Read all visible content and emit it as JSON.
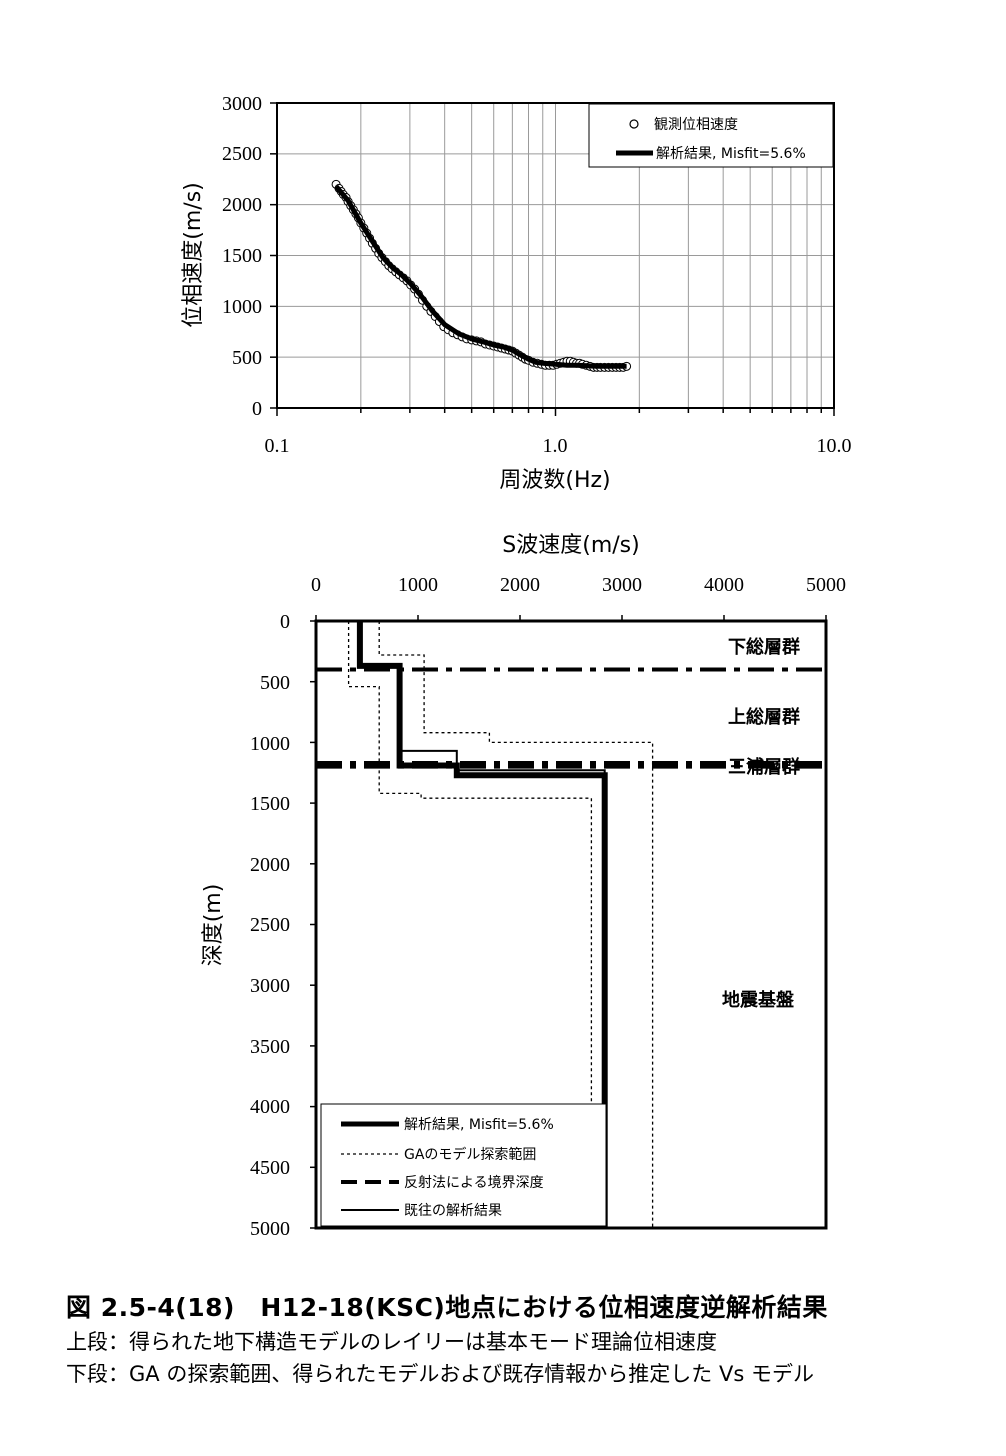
{
  "chart_data": [
    {
      "type": "scatter",
      "xscale": "log",
      "xlim": [
        0.1,
        10.0
      ],
      "ylim": [
        0,
        3000
      ],
      "xticks": [
        "0.1",
        "1.0",
        "10.0"
      ],
      "yticks": [
        "0",
        "500",
        "1000",
        "1500",
        "2000",
        "2500",
        "3000"
      ],
      "xlabel": "周波数(Hz)",
      "ylabel": "位相速度(m/s)",
      "grid": true,
      "legend_position": "top-right",
      "legend": [
        "観測位相速度",
        "解析結果, Misfit=5.6%"
      ],
      "series": [
        {
          "name": "観測位相速度",
          "marker": "open-circle",
          "x": [
            0.163,
            0.167,
            0.17,
            0.173,
            0.177,
            0.18,
            0.184,
            0.188,
            0.192,
            0.196,
            0.2,
            0.205,
            0.21,
            0.215,
            0.22,
            0.226,
            0.232,
            0.238,
            0.245,
            0.252,
            0.259,
            0.267,
            0.275,
            0.284,
            0.293,
            0.302,
            0.312,
            0.322,
            0.333,
            0.345,
            0.357,
            0.37,
            0.383,
            0.397,
            0.412,
            0.428,
            0.445,
            0.462,
            0.48,
            0.5,
            0.52,
            0.54,
            0.56,
            0.58,
            0.6,
            0.62,
            0.64,
            0.66,
            0.68,
            0.7,
            0.72,
            0.74,
            0.76,
            0.78,
            0.8,
            0.83,
            0.86,
            0.89,
            0.92,
            0.95,
            0.98,
            1.01,
            1.04,
            1.07,
            1.1,
            1.13,
            1.16,
            1.19,
            1.22,
            1.25,
            1.29,
            1.33,
            1.37,
            1.41,
            1.45,
            1.5,
            1.55,
            1.6,
            1.65,
            1.7,
            1.75,
            1.8
          ],
          "y": [
            2200,
            2160,
            2130,
            2100,
            2070,
            2030,
            1990,
            1950,
            1910,
            1870,
            1820,
            1770,
            1720,
            1670,
            1620,
            1570,
            1520,
            1480,
            1440,
            1400,
            1370,
            1340,
            1310,
            1280,
            1250,
            1210,
            1170,
            1120,
            1060,
            1000,
            950,
            900,
            850,
            800,
            770,
            740,
            720,
            700,
            680,
            670,
            660,
            650,
            630,
            620,
            610,
            600,
            590,
            580,
            570,
            560,
            540,
            520,
            500,
            480,
            470,
            450,
            440,
            430,
            420,
            420,
            420,
            430,
            440,
            450,
            460,
            460,
            450,
            440,
            440,
            430,
            420,
            410,
            400,
            400,
            400,
            400,
            400,
            400,
            400,
            400,
            400,
            410
          ]
        },
        {
          "name": "解析結果, Misfit=5.6%",
          "line": "thick-solid",
          "x": [
            0.163,
            0.18,
            0.2,
            0.22,
            0.24,
            0.26,
            0.28,
            0.3,
            0.33,
            0.36,
            0.4,
            0.45,
            0.5,
            0.55,
            0.6,
            0.65,
            0.7,
            0.75,
            0.8,
            0.85,
            0.9,
            1.0,
            1.1,
            1.2,
            1.3,
            1.4,
            1.5,
            1.6,
            1.7,
            1.8
          ],
          "y": [
            2180,
            2040,
            1820,
            1640,
            1480,
            1380,
            1310,
            1230,
            1100,
            960,
            820,
            730,
            680,
            650,
            620,
            600,
            570,
            520,
            480,
            450,
            440,
            430,
            420,
            420,
            415,
            410,
            410,
            410,
            410,
            410
          ]
        }
      ]
    },
    {
      "type": "line",
      "title": "",
      "xlabel": "S波速度(m/s)",
      "ylabel": "深度(m)",
      "xlim": [
        0,
        5000
      ],
      "ylim": [
        5000,
        0
      ],
      "y_inverted": true,
      "x_axis_position": "top",
      "xticks": [
        "0",
        "1000",
        "2000",
        "3000",
        "4000",
        "5000"
      ],
      "yticks": [
        "0",
        "500",
        "1000",
        "1500",
        "2000",
        "2500",
        "3000",
        "3500",
        "4000",
        "4500",
        "5000"
      ],
      "grid": false,
      "legend_position": "bottom-left",
      "legend": [
        "解析結果, Misfit=5.6%",
        "GAのモデル探索範囲",
        "反射法による境界深度",
        "既往の解析結果"
      ],
      "series": [
        {
          "name": "解析結果, Misfit=5.6%",
          "line": "thick-solid",
          "x": [
            430,
            430,
            820,
            820,
            1380,
            1380,
            2830,
            2830
          ],
          "y": [
            0,
            370,
            370,
            1190,
            1190,
            1270,
            1270,
            5000
          ]
        },
        {
          "name": "GAのモデル探索範囲 (下限)",
          "line": "dotted",
          "x": [
            320,
            320,
            620,
            620,
            1030,
            1030,
            2700,
            2700
          ],
          "y": [
            0,
            540,
            540,
            1420,
            1420,
            1460,
            1460,
            5000
          ]
        },
        {
          "name": "GAのモデル探索範囲 (上限)",
          "line": "dotted",
          "x": [
            620,
            620,
            1060,
            1060,
            1700,
            1700,
            3300,
            3300
          ],
          "y": [
            0,
            280,
            280,
            920,
            920,
            1000,
            1000,
            5000
          ]
        },
        {
          "name": "反射法による境界深度",
          "line": "dash-dot",
          "depths": [
            400,
            1170,
            1200
          ]
        },
        {
          "name": "既往の解析結果",
          "line": "solid",
          "x": [
            430,
            430,
            820,
            820,
            1380,
            1380,
            2830,
            2830
          ],
          "y": [
            0,
            380,
            380,
            1070,
            1070,
            1230,
            1230,
            5000
          ]
        }
      ],
      "layer_labels": [
        {
          "text": "下総層群",
          "depth": 200
        },
        {
          "text": "上総層群",
          "depth": 780
        },
        {
          "text": "三浦層群",
          "depth": 1185
        },
        {
          "text": "地震基盤",
          "depth": 3100
        }
      ]
    }
  ],
  "caption": {
    "title": "図 2.5-4(18)　H12-18(KSC)地点における位相速度逆解析結果",
    "line1": "上段：得られた地下構造モデルのレイリーは基本モード理論位相速度",
    "line2": "下段：GA の探索範囲、得られたモデルおよび既存情報から推定した Vs モデル"
  }
}
